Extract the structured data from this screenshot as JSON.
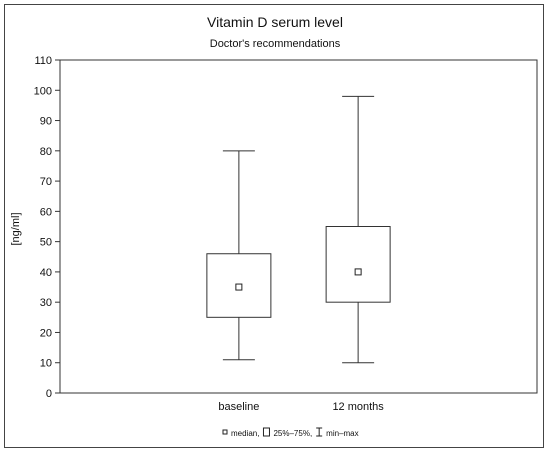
{
  "chart_data": {
    "type": "box",
    "title": "Vitamin D serum level",
    "subtitle": "Doctor's recommendations",
    "ylabel": "[ng/ml]",
    "xlabel": "",
    "ylim": [
      0,
      110
    ],
    "yticks": [
      0,
      10,
      20,
      30,
      40,
      50,
      60,
      70,
      80,
      90,
      100,
      110
    ],
    "grid": false,
    "legend_position": "bottom-center",
    "categories": [
      "baseline",
      "12 months"
    ],
    "boxes": [
      {
        "category": "baseline",
        "min": 11,
        "q1": 25,
        "median": 35,
        "q3": 46,
        "max": 80
      },
      {
        "category": "12 months",
        "min": 10,
        "q1": 30,
        "median": 40,
        "q3": 55,
        "max": 98
      }
    ],
    "legend": [
      {
        "symbol": "square-marker",
        "label": "median,"
      },
      {
        "symbol": "box",
        "label": "25%–75%,"
      },
      {
        "symbol": "whisker",
        "label": "min–max"
      }
    ]
  }
}
